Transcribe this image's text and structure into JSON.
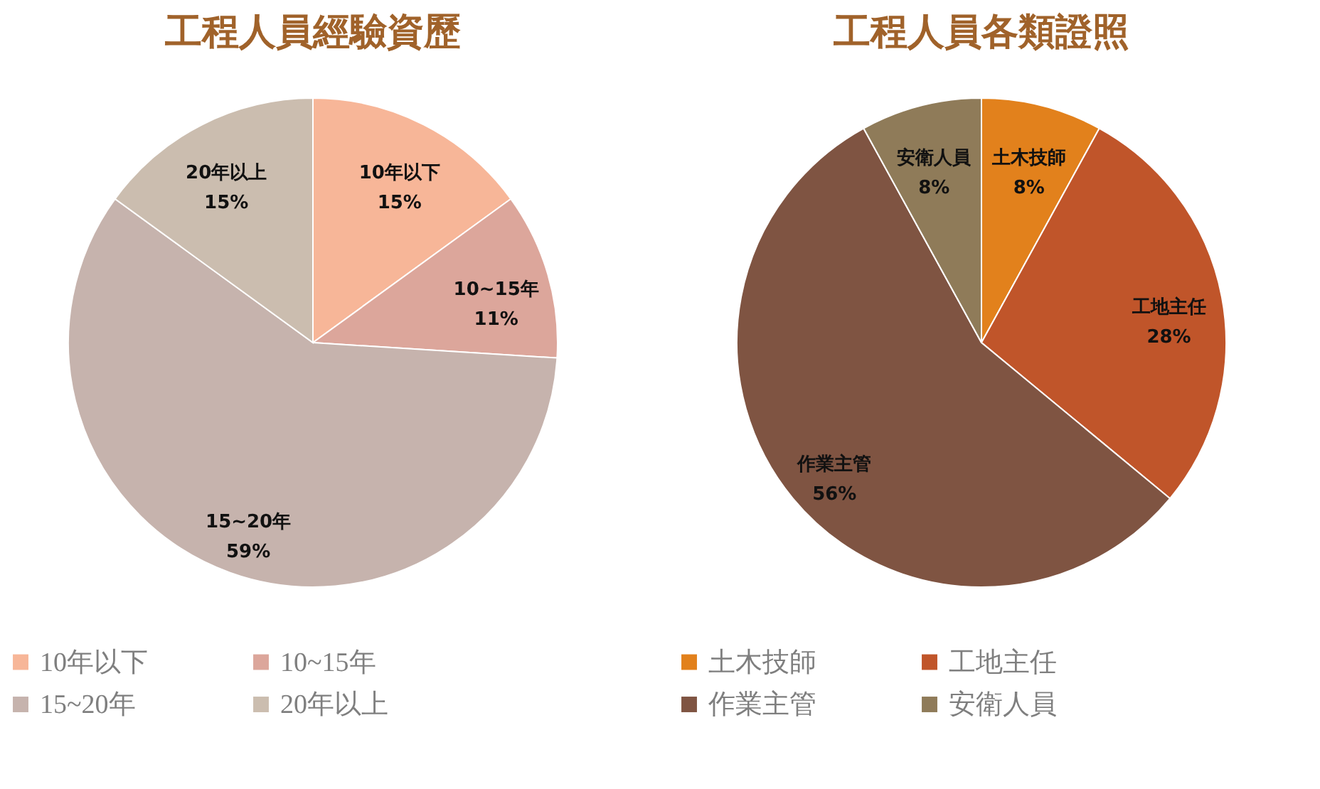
{
  "chart_data": [
    {
      "type": "pie",
      "title": "工程人員經驗資歷",
      "categories": [
        "10年以下",
        "10~15年",
        "15~20年",
        "20年以上"
      ],
      "values": [
        15,
        11,
        59,
        15
      ],
      "value_labels": [
        "15%",
        "11%",
        "59%",
        "15%"
      ],
      "colors": [
        "#f7b698",
        "#dca69b",
        "#c6b3ad",
        "#cbbdaf"
      ],
      "legend": "bottom"
    },
    {
      "type": "pie",
      "title": "工程人員各類證照",
      "categories": [
        "土木技師",
        "工地主任",
        "作業主管",
        "安衛人員"
      ],
      "values": [
        8,
        28,
        56,
        8
      ],
      "value_labels": [
        "8%",
        "28%",
        "56%",
        "8%"
      ],
      "colors": [
        "#e2811c",
        "#c0552a",
        "#7f5442",
        "#8f7b59"
      ],
      "legend": "bottom"
    }
  ]
}
